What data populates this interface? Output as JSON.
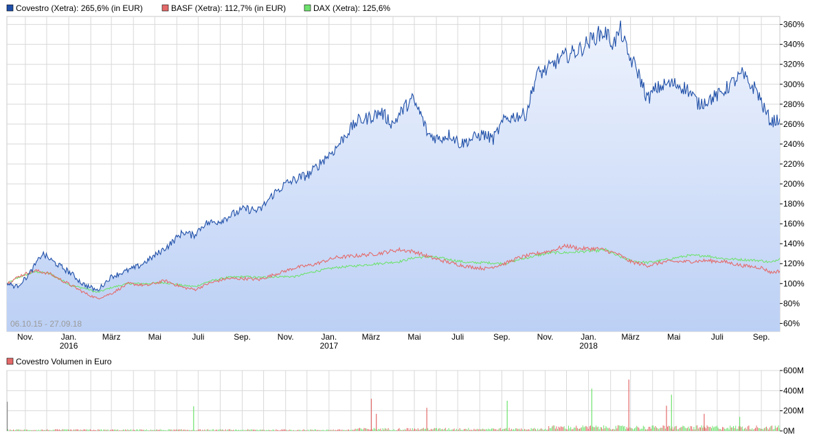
{
  "legend": [
    {
      "label": "Covestro (Xetra): 265,6% (in EUR)",
      "color": "#1f4fa8"
    },
    {
      "label": "BASF (Xetra): 112,7% (in EUR)",
      "color": "#e46a6a"
    },
    {
      "label": "DAX (Xetra): 125,6%",
      "color": "#6ee26e"
    }
  ],
  "date_range": "06.10.15 - 27.09.18",
  "volume_legend": {
    "label": "Covestro Volumen in Euro",
    "color": "#e46a6a"
  },
  "colors": {
    "covestro": "#1f4fa8",
    "basf": "#e46a6a",
    "dax": "#6ee26e",
    "area_top": "#eef3fd",
    "area_bottom": "#bcd0f5",
    "grid": "#d8d8d8"
  },
  "chart_data": [
    {
      "type": "line",
      "ylim": [
        52,
        368
      ],
      "xlim": [
        "2015-10-06",
        "2018-09-27"
      ],
      "y_ticks": [
        60,
        80,
        100,
        120,
        140,
        160,
        180,
        200,
        220,
        240,
        260,
        280,
        300,
        320,
        340,
        360
      ],
      "y_tick_labels": [
        "60%",
        "80%",
        "100%",
        "120%",
        "140%",
        "160%",
        "180%",
        "200%",
        "220%",
        "240%",
        "260%",
        "280%",
        "300%",
        "320%",
        "340%",
        "360%"
      ],
      "x_ticks": [
        {
          "date": "2015-11-01",
          "label": "Nov."
        },
        {
          "date": "2016-01-01",
          "label": "Jan.",
          "year": "2016"
        },
        {
          "date": "2016-03-01",
          "label": "März"
        },
        {
          "date": "2016-05-01",
          "label": "Mai"
        },
        {
          "date": "2016-07-01",
          "label": "Juli"
        },
        {
          "date": "2016-09-01",
          "label": "Sep."
        },
        {
          "date": "2016-11-01",
          "label": "Nov."
        },
        {
          "date": "2017-01-01",
          "label": "Jan.",
          "year": "2017"
        },
        {
          "date": "2017-03-01",
          "label": "März"
        },
        {
          "date": "2017-05-01",
          "label": "Mai"
        },
        {
          "date": "2017-07-01",
          "label": "Juli"
        },
        {
          "date": "2017-09-01",
          "label": "Sep."
        },
        {
          "date": "2017-11-01",
          "label": "Nov."
        },
        {
          "date": "2018-01-01",
          "label": "Jan.",
          "year": "2018"
        },
        {
          "date": "2018-03-01",
          "label": "März"
        },
        {
          "date": "2018-05-01",
          "label": "Mai"
        },
        {
          "date": "2018-07-01",
          "label": "Juli"
        },
        {
          "date": "2018-09-01",
          "label": "Sep."
        }
      ],
      "grid": true,
      "series": [
        {
          "name": "Covestro (Xetra): 265,6% (in EUR)",
          "color": "#1f4fa8",
          "fill": true,
          "x": [
            "2015-10-06",
            "2015-10-20",
            "2015-11-05",
            "2015-11-25",
            "2015-12-10",
            "2016-01-05",
            "2016-01-20",
            "2016-02-10",
            "2016-03-01",
            "2016-03-20",
            "2016-04-10",
            "2016-05-01",
            "2016-05-20",
            "2016-06-10",
            "2016-06-24",
            "2016-07-10",
            "2016-08-01",
            "2016-08-20",
            "2016-09-05",
            "2016-09-25",
            "2016-10-15",
            "2016-11-01",
            "2016-11-20",
            "2016-12-05",
            "2016-12-25",
            "2017-01-10",
            "2017-01-25",
            "2017-02-10",
            "2017-02-25",
            "2017-03-15",
            "2017-04-01",
            "2017-04-15",
            "2017-04-28",
            "2017-05-10",
            "2017-05-20",
            "2017-06-05",
            "2017-06-20",
            "2017-07-05",
            "2017-07-20",
            "2017-08-05",
            "2017-08-20",
            "2017-09-05",
            "2017-09-20",
            "2017-10-05",
            "2017-10-20",
            "2017-11-05",
            "2017-11-20",
            "2017-12-05",
            "2017-12-20",
            "2018-01-05",
            "2018-01-15",
            "2018-01-25",
            "2018-02-05",
            "2018-02-15",
            "2018-02-25",
            "2018-03-10",
            "2018-03-25",
            "2018-04-05",
            "2018-04-20",
            "2018-05-05",
            "2018-05-20",
            "2018-06-05",
            "2018-06-20",
            "2018-07-05",
            "2018-07-20",
            "2018-08-05",
            "2018-08-15",
            "2018-08-25",
            "2018-09-05",
            "2018-09-15",
            "2018-09-27"
          ],
          "y": [
            100,
            97,
            108,
            130,
            122,
            110,
            100,
            93,
            107,
            112,
            118,
            128,
            138,
            152,
            148,
            160,
            163,
            170,
            175,
            173,
            190,
            200,
            206,
            210,
            225,
            235,
            250,
            263,
            266,
            272,
            260,
            275,
            285,
            270,
            250,
            245,
            250,
            240,
            245,
            250,
            245,
            265,
            268,
            270,
            310,
            315,
            325,
            330,
            335,
            345,
            350,
            352,
            340,
            355,
            330,
            315,
            285,
            295,
            300,
            300,
            295,
            280,
            285,
            290,
            300,
            310,
            300,
            295,
            275,
            262,
            265.6
          ]
        },
        {
          "name": "BASF (Xetra): 112,7% (in EUR)",
          "color": "#e46a6a",
          "x": [
            "2015-10-06",
            "2015-10-25",
            "2015-11-15",
            "2015-12-05",
            "2016-01-05",
            "2016-01-25",
            "2016-02-10",
            "2016-03-01",
            "2016-03-25",
            "2016-04-20",
            "2016-05-15",
            "2016-06-10",
            "2016-06-27",
            "2016-07-15",
            "2016-08-10",
            "2016-09-05",
            "2016-09-25",
            "2016-10-20",
            "2016-11-15",
            "2016-12-10",
            "2017-01-10",
            "2017-02-10",
            "2017-03-10",
            "2017-04-10",
            "2017-05-01",
            "2017-05-25",
            "2017-06-20",
            "2017-07-15",
            "2017-08-10",
            "2017-09-05",
            "2017-09-25",
            "2017-10-20",
            "2017-11-10",
            "2017-12-01",
            "2017-12-20",
            "2018-01-15",
            "2018-01-25",
            "2018-02-10",
            "2018-03-01",
            "2018-03-25",
            "2018-04-20",
            "2018-05-20",
            "2018-06-15",
            "2018-07-10",
            "2018-08-05",
            "2018-09-01",
            "2018-09-15",
            "2018-09-27"
          ],
          "y": [
            100,
            108,
            113,
            110,
            98,
            90,
            85,
            90,
            100,
            98,
            103,
            96,
            94,
            100,
            105,
            105,
            104,
            110,
            116,
            119,
            126,
            128,
            130,
            134,
            132,
            126,
            121,
            117,
            115,
            120,
            126,
            130,
            133,
            138,
            135,
            135,
            133,
            130,
            122,
            118,
            122,
            122,
            123,
            122,
            118,
            116,
            111,
            112.7
          ]
        },
        {
          "name": "DAX (Xetra): 125,6%",
          "color": "#6ee26e",
          "x": [
            "2015-10-06",
            "2015-10-25",
            "2015-11-15",
            "2015-12-05",
            "2016-01-05",
            "2016-01-25",
            "2016-02-10",
            "2016-03-01",
            "2016-03-25",
            "2016-04-20",
            "2016-05-15",
            "2016-06-10",
            "2016-06-27",
            "2016-07-15",
            "2016-08-10",
            "2016-09-05",
            "2016-09-25",
            "2016-10-20",
            "2016-11-15",
            "2016-12-10",
            "2017-01-10",
            "2017-02-10",
            "2017-03-10",
            "2017-04-10",
            "2017-05-01",
            "2017-05-25",
            "2017-06-20",
            "2017-07-15",
            "2017-08-10",
            "2017-09-05",
            "2017-09-25",
            "2017-10-20",
            "2017-11-10",
            "2017-12-01",
            "2017-12-20",
            "2018-01-15",
            "2018-01-25",
            "2018-02-10",
            "2018-03-01",
            "2018-03-25",
            "2018-04-20",
            "2018-05-20",
            "2018-06-15",
            "2018-07-10",
            "2018-08-05",
            "2018-09-01",
            "2018-09-15",
            "2018-09-27"
          ],
          "y": [
            100,
            107,
            112,
            110,
            98,
            95,
            91,
            96,
            100,
            100,
            101,
            98,
            97,
            102,
            106,
            107,
            106,
            107,
            107,
            112,
            116,
            118,
            120,
            122,
            126,
            127,
            124,
            121,
            121,
            120,
            124,
            128,
            131,
            131,
            132,
            133,
            134,
            128,
            123,
            121,
            124,
            128,
            128,
            125,
            124,
            123,
            121,
            125.6
          ]
        }
      ]
    },
    {
      "type": "bar",
      "name": "Covestro Volumen in Euro",
      "ylim": [
        0,
        600
      ],
      "y_ticks": [
        0,
        200,
        400,
        600
      ],
      "y_tick_labels": [
        "0M",
        "200M",
        "400M",
        "600M"
      ],
      "volume_spikes": [
        {
          "date": "2015-10-06",
          "value": 290,
          "color": "#888888"
        },
        {
          "date": "2016-06-24",
          "value": 245,
          "color": "#6ee26e"
        },
        {
          "date": "2017-03-01",
          "value": 320,
          "color": "#e46a6a"
        },
        {
          "date": "2017-03-08",
          "value": 170,
          "color": "#e46a6a"
        },
        {
          "date": "2017-05-18",
          "value": 230,
          "color": "#e46a6a"
        },
        {
          "date": "2017-09-08",
          "value": 300,
          "color": "#6ee26e"
        },
        {
          "date": "2018-01-05",
          "value": 420,
          "color": "#6ee26e"
        },
        {
          "date": "2018-02-26",
          "value": 510,
          "color": "#e46a6a"
        },
        {
          "date": "2018-04-20",
          "value": 250,
          "color": "#e46a6a"
        },
        {
          "date": "2018-04-27",
          "value": 360,
          "color": "#6ee26e"
        },
        {
          "date": "2018-06-12",
          "value": 170,
          "color": "#e46a6a"
        },
        {
          "date": "2018-08-01",
          "value": 140,
          "color": "#6ee26e"
        }
      ]
    }
  ]
}
